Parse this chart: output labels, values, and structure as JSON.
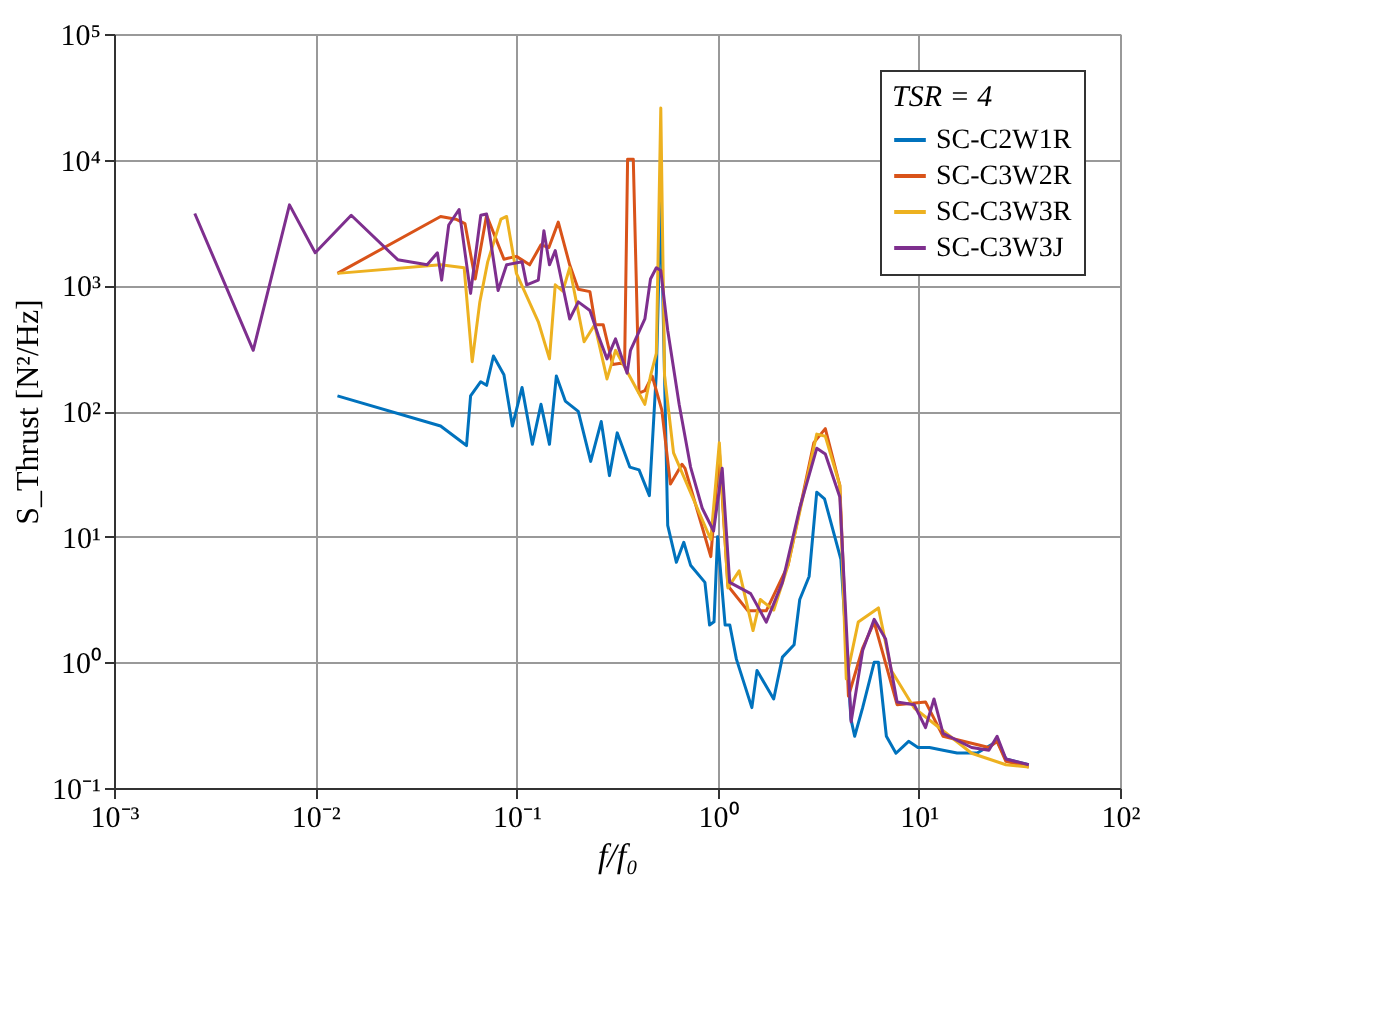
{
  "chart_data": {
    "type": "line",
    "xlabel": "f/f₀",
    "ylabel": "S_Thrust  [N²/Hz]",
    "legend_title": "TSR = 4",
    "log": "xy",
    "grid": true,
    "legend": "top right",
    "xlim": [
      0.001,
      100
    ],
    "ylim": [
      0.1,
      100000
    ],
    "xticks": [
      {
        "value": 0.001,
        "label": "10⁻³"
      },
      {
        "value": 0.01,
        "label": "10⁻²"
      },
      {
        "value": 0.1,
        "label": "10⁻¹"
      },
      {
        "value": 1,
        "label": "10⁰"
      },
      {
        "value": 10,
        "label": "10¹"
      },
      {
        "value": 100,
        "label": "10²"
      }
    ],
    "yticks": [
      {
        "value": 0.1,
        "label": "10⁻¹"
      },
      {
        "value": 1,
        "label": "10⁰"
      },
      {
        "value": 10,
        "label": "10¹"
      },
      {
        "value": 100,
        "label": "10²"
      },
      {
        "value": 1000,
        "label": "10³"
      },
      {
        "value": 10000,
        "label": "10⁴"
      },
      {
        "value": 100000,
        "label": "10⁵"
      }
    ],
    "series": [
      {
        "name": "SC-C2W1R",
        "color": "#0072bd",
        "x": [
          0.0129,
          0.042,
          0.0565,
          0.0592,
          0.0665,
          0.0711,
          0.0769,
          0.0867,
          0.0955,
          0.1067,
          0.12,
          0.1325,
          0.146,
          0.158,
          0.175,
          0.203,
          0.234,
          0.264,
          0.29,
          0.317,
          0.366,
          0.407,
          0.458,
          0.496,
          0.522,
          0.565,
          0.624,
          0.679,
          0.734,
          0.865,
          0.912,
          0.96,
          1.0,
          1.09,
          1.15,
          1.24,
          1.48,
          1.57,
          1.9,
          2.1,
          2.4,
          2.56,
          2.85,
          3.11,
          3.4,
          4.1,
          4.6,
          4.8,
          5.26,
          6.0,
          6.3,
          6.9,
          7.7,
          8.9,
          9.9,
          11.3,
          13.2,
          15.5,
          19.5,
          24.5,
          27.1,
          35.2
        ],
        "values": [
          132,
          75.9,
          53.1,
          132,
          171,
          160,
          274,
          194,
          75.9,
          154,
          54.3,
          113,
          54.3,
          190,
          120,
          99.3,
          39.7,
          82.4,
          30.6,
          67,
          35.8,
          34,
          21.2,
          200,
          4830,
          12.3,
          6.25,
          9.02,
          5.93,
          4.33,
          1.98,
          2.1,
          10,
          1.98,
          1.98,
          1.06,
          0.436,
          0.861,
          0.511,
          1.1,
          1.38,
          3.16,
          4.82,
          22.6,
          20,
          6.59,
          0.353,
          0.258,
          0.436,
          1.0,
          1.0,
          0.258,
          0.189,
          0.235,
          0.21,
          0.21,
          0.2,
          0.19,
          0.19,
          0.235,
          0.17,
          0.153
        ]
      },
      {
        "name": "SC-C3W2R",
        "color": "#d95319",
        "x": [
          0.0129,
          0.042,
          0.05,
          0.0555,
          0.0624,
          0.0711,
          0.0867,
          0.1,
          0.1164,
          0.1325,
          0.145,
          0.1615,
          0.184,
          0.203,
          0.232,
          0.247,
          0.27,
          0.301,
          0.33,
          0.345,
          0.357,
          0.381,
          0.407,
          0.435,
          0.473,
          0.528,
          0.583,
          0.665,
          0.689,
          0.925,
          1.02,
          1.125,
          1.415,
          1.745,
          2.24,
          3.01,
          3.43,
          4.05,
          4.47,
          5.26,
          6.0,
          7.8,
          10.8,
          13.2,
          22.3,
          24.5,
          27.1,
          35.2
        ],
        "values": [
          1245,
          3532,
          3360,
          3100,
          1122,
          3610,
          1615,
          1700,
          1456,
          2100,
          2000,
          3184,
          1456,
          931,
          891,
          486,
          486,
          234,
          240,
          234,
          10070,
          10070,
          139,
          145,
          190,
          102,
          26.2,
          37.7,
          35,
          6.93,
          47.9,
          4.07,
          2.57,
          2.57,
          5.93,
          56,
          72.4,
          25.6,
          0.537,
          1.3,
          2.09,
          0.46,
          0.484,
          0.258,
          0.21,
          0.235,
          0.163,
          0.147
        ]
      },
      {
        "name": "SC-C3W3R",
        "color": "#edb120",
        "x": [
          0.0129,
          0.042,
          0.055,
          0.0603,
          0.0658,
          0.072,
          0.0838,
          0.0894,
          0.1,
          0.1285,
          0.146,
          0.156,
          0.17,
          0.184,
          0.217,
          0.245,
          0.282,
          0.311,
          0.435,
          0.464,
          0.496,
          0.522,
          0.545,
          0.604,
          0.838,
          0.925,
          1.02,
          1.125,
          1.28,
          1.5,
          1.63,
          1.9,
          2.24,
          3.11,
          3.43,
          4.05,
          4.36,
          5.0,
          6.3,
          7.3,
          9.49,
          18.3,
          27.1,
          35.2
        ],
        "values": [
          1245,
          1456,
          1380,
          247,
          738,
          1538,
          3365,
          3532,
          1245,
          513,
          260,
          1009,
          900,
          1380,
          356,
          486,
          180,
          304,
          113,
          190,
          288,
          25800,
          190,
          46.4,
          13.7,
          9.49,
          56,
          3.91,
          5.35,
          1.79,
          3.16,
          2.6,
          5.93,
          65.5,
          63,
          25.6,
          0.736,
          2.09,
          2.71,
          0.861,
          0.433,
          0.189,
          0.153,
          0.147
        ]
      },
      {
        "name": "SC-C3W3J",
        "color": "#7e2f8e",
        "x": [
          0.00252,
          0.00492,
          0.00745,
          0.01,
          0.0151,
          0.0257,
          0.036,
          0.0405,
          0.0425,
          0.0461,
          0.0519,
          0.0592,
          0.0665,
          0.0711,
          0.0811,
          0.0894,
          0.1067,
          0.1125,
          0.1285,
          0.137,
          0.146,
          0.156,
          0.184,
          0.203,
          0.232,
          0.256,
          0.282,
          0.311,
          0.355,
          0.369,
          0.435,
          0.464,
          0.496,
          0.522,
          0.565,
          0.644,
          0.734,
          0.838,
          0.955,
          1.054,
          1.148,
          1.46,
          1.745,
          2.1,
          2.56,
          3.11,
          3.43,
          4.05,
          4.61,
          5.26,
          6.0,
          6.84,
          7.8,
          9.49,
          10.8,
          11.9,
          13.2,
          18.3,
          22.3,
          24.5,
          27.1,
          35.2
        ],
        "values": [
          3730,
          304,
          4370,
          1815,
          3610,
          1600,
          1456,
          1815,
          1100,
          3020,
          4010,
          863,
          3610,
          3690,
          910,
          1456,
          1538,
          1009,
          1099,
          2723,
          1456,
          1888,
          540,
          738,
          631,
          394,
          260,
          375,
          200,
          304,
          540,
          1122,
          1380,
          1312,
          439,
          113,
          35.8,
          16.9,
          11.1,
          35,
          4.33,
          3.52,
          2.09,
          4.33,
          16.9,
          50.5,
          45.4,
          20.7,
          0.336,
          1.24,
          2.2,
          1.53,
          0.484,
          0.46,
          0.302,
          0.511,
          0.272,
          0.21,
          0.2,
          0.258,
          0.17,
          0.153
        ]
      }
    ]
  }
}
